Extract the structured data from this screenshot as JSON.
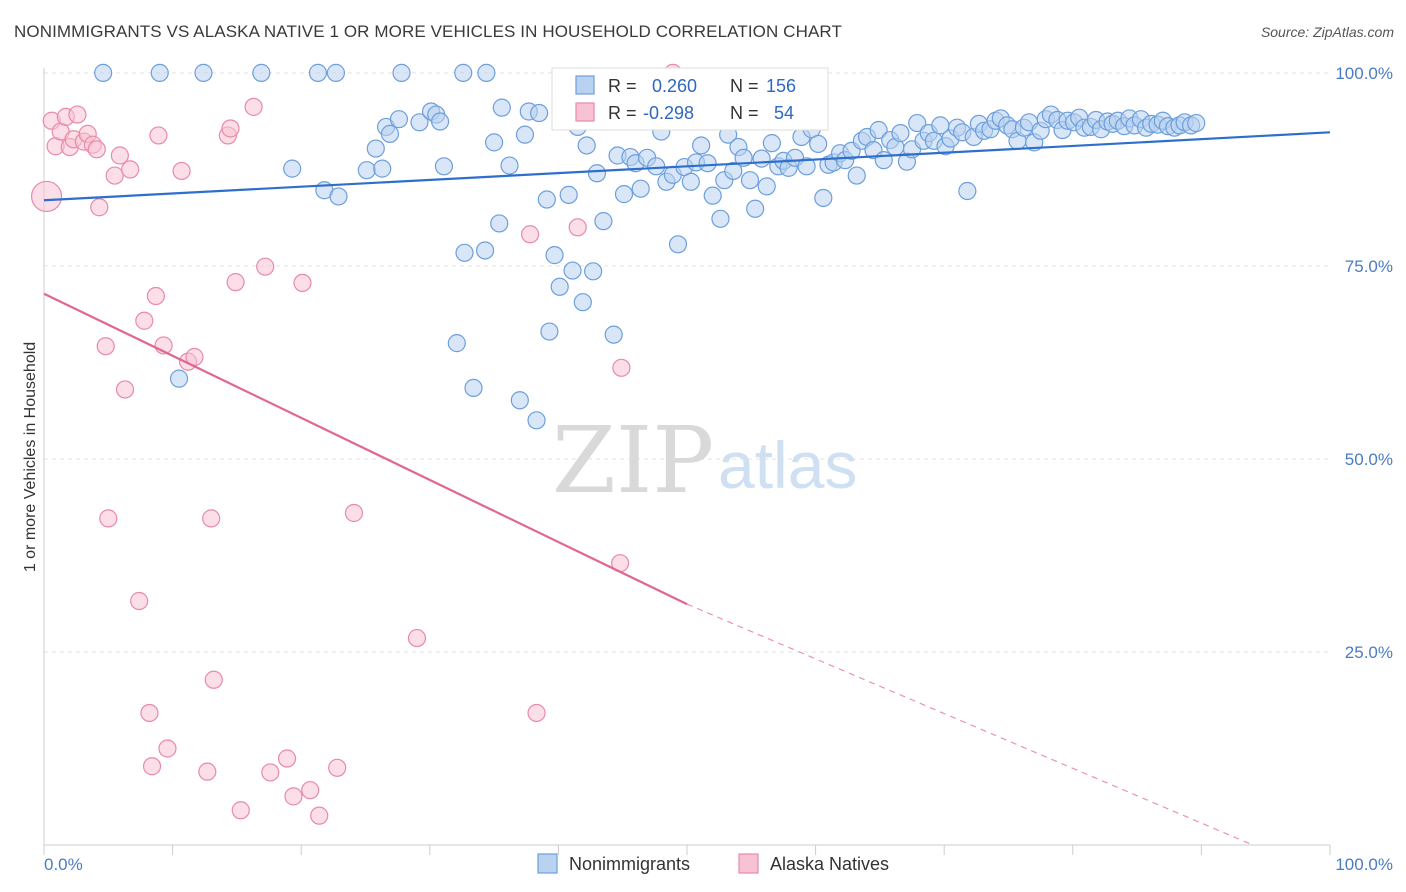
{
  "header": {
    "title": "NONIMMIGRANTS VS ALASKA NATIVE 1 OR MORE VEHICLES IN HOUSEHOLD CORRELATION CHART",
    "source": "Source: ZipAtlas.com"
  },
  "watermark": {
    "zip": "ZIP",
    "atlas": "atlas"
  },
  "colors": {
    "blue_fill": "#b8d2f0",
    "blue_stroke": "#6d9fdc",
    "blue_line": "#2e6fcc",
    "pink_fill": "#f7c3d4",
    "pink_stroke": "#e88aa8",
    "pink_line": "#e06693",
    "grid": "#e3e3e3",
    "tick_text": "#4a7cc4"
  },
  "legend": {
    "rows": [
      {
        "series": "Nonimmigrants",
        "r_label": "R =",
        "r_value": "0.260",
        "n_label": "N =",
        "n_value": "156"
      },
      {
        "series": "Alaska Natives",
        "r_label": "R =",
        "r_value": "-0.298",
        "n_label": "N =",
        "n_value": "54"
      }
    ]
  },
  "chart_data": {
    "type": "scatter",
    "title": "NONIMMIGRANTS VS ALASKA NATIVE 1 OR MORE VEHICLES IN HOUSEHOLD CORRELATION CHART",
    "xlabel": "",
    "ylabel": "1 or more Vehicles in Household",
    "xlim": [
      0,
      100
    ],
    "ylim": [
      0,
      104
    ],
    "x_tick_labels": [
      "0.0%",
      "100.0%"
    ],
    "y_ticks": [
      25,
      50,
      75,
      100
    ],
    "y_tick_labels": [
      "25.0%",
      "50.0%",
      "75.0%",
      "100.0%"
    ],
    "grid": true,
    "legend_position": "top-center",
    "series": [
      {
        "name": "Nonimmigrants",
        "color": "#6d9fdc",
        "trend": {
          "x": [
            0,
            100
          ],
          "y": [
            83.5,
            92.3
          ]
        },
        "points": [
          [
            4.6,
            100
          ],
          [
            9.0,
            100
          ],
          [
            12.4,
            100
          ],
          [
            16.9,
            100
          ],
          [
            21.3,
            100
          ],
          [
            22.7,
            100
          ],
          [
            27.8,
            100
          ],
          [
            32.6,
            100
          ],
          [
            34.4,
            100
          ],
          [
            10.5,
            60.4
          ],
          [
            19.3,
            87.6
          ],
          [
            21.8,
            84.8
          ],
          [
            22.9,
            84
          ],
          [
            25.1,
            87.4
          ],
          [
            25.8,
            90.2
          ],
          [
            26.3,
            87.6
          ],
          [
            26.6,
            93
          ],
          [
            26.9,
            92.1
          ],
          [
            27.6,
            94
          ],
          [
            29.2,
            93.6
          ],
          [
            30.1,
            95
          ],
          [
            30.5,
            94.6
          ],
          [
            30.8,
            93.7
          ],
          [
            31.1,
            87.9
          ],
          [
            32.1,
            65
          ],
          [
            32.7,
            76.7
          ],
          [
            33.4,
            59.2
          ],
          [
            34.3,
            77
          ],
          [
            35.0,
            91
          ],
          [
            35.4,
            80.5
          ],
          [
            35.6,
            95.5
          ],
          [
            36.2,
            88
          ],
          [
            37.0,
            57.6
          ],
          [
            37.4,
            92
          ],
          [
            37.7,
            95
          ],
          [
            38.3,
            55
          ],
          [
            38.5,
            94.8
          ],
          [
            39.1,
            83.6
          ],
          [
            39.3,
            66.5
          ],
          [
            39.7,
            76.4
          ],
          [
            40.1,
            72.3
          ],
          [
            40.8,
            84.2
          ],
          [
            41.1,
            74.4
          ],
          [
            41.5,
            93
          ],
          [
            41.9,
            70.3
          ],
          [
            42.2,
            90.6
          ],
          [
            42.7,
            74.3
          ],
          [
            43.0,
            87
          ],
          [
            43.5,
            80.8
          ],
          [
            43.9,
            96.7
          ],
          [
            44.3,
            66.1
          ],
          [
            44.6,
            89.3
          ],
          [
            45.1,
            84.3
          ],
          [
            45.6,
            89.1
          ],
          [
            46.0,
            88.3
          ],
          [
            46.4,
            85
          ],
          [
            46.9,
            89
          ],
          [
            47.3,
            94.5
          ],
          [
            47.6,
            87.9
          ],
          [
            48.0,
            92.4
          ],
          [
            48.4,
            85.9
          ],
          [
            48.9,
            86.8
          ],
          [
            49.3,
            77.8
          ],
          [
            49.8,
            87.8
          ],
          [
            50.3,
            85.9
          ],
          [
            50.7,
            88.4
          ],
          [
            51.1,
            90.6
          ],
          [
            51.6,
            88.3
          ],
          [
            52.0,
            84.1
          ],
          [
            52.6,
            81.1
          ],
          [
            52.9,
            86.1
          ],
          [
            53.2,
            92
          ],
          [
            53.6,
            87.3
          ],
          [
            54.0,
            90.4
          ],
          [
            54.4,
            89
          ],
          [
            54.9,
            86.1
          ],
          [
            55.3,
            82.4
          ],
          [
            55.8,
            88.9
          ],
          [
            56.2,
            85.3
          ],
          [
            56.6,
            90.9
          ],
          [
            57.1,
            87.9
          ],
          [
            57.5,
            88.6
          ],
          [
            57.9,
            87.7
          ],
          [
            58.4,
            89
          ],
          [
            58.9,
            91.7
          ],
          [
            59.3,
            87.9
          ],
          [
            59.7,
            92.7
          ],
          [
            60.2,
            90.8
          ],
          [
            60.6,
            83.8
          ],
          [
            61.0,
            88.1
          ],
          [
            61.4,
            88.4
          ],
          [
            61.9,
            89.6
          ],
          [
            62.3,
            88.7
          ],
          [
            62.8,
            89.9
          ],
          [
            63.2,
            86.7
          ],
          [
            63.6,
            91.2
          ],
          [
            64.0,
            91.7
          ],
          [
            64.5,
            90
          ],
          [
            64.9,
            92.6
          ],
          [
            65.3,
            88.7
          ],
          [
            65.8,
            91.3
          ],
          [
            66.2,
            90.4
          ],
          [
            66.6,
            92.2
          ],
          [
            67.1,
            88.5
          ],
          [
            67.5,
            90.1
          ],
          [
            67.9,
            93.5
          ],
          [
            68.4,
            91.2
          ],
          [
            68.8,
            92.2
          ],
          [
            69.2,
            91.2
          ],
          [
            69.7,
            93.2
          ],
          [
            70.1,
            90.5
          ],
          [
            70.5,
            91.5
          ],
          [
            71.0,
            92.9
          ],
          [
            71.4,
            92.3
          ],
          [
            71.8,
            84.7
          ],
          [
            72.3,
            91.7
          ],
          [
            72.7,
            93.4
          ],
          [
            73.1,
            92.5
          ],
          [
            73.6,
            92.7
          ],
          [
            74.0,
            93.8
          ],
          [
            74.4,
            94.1
          ],
          [
            74.9,
            93.2
          ],
          [
            75.3,
            92.7
          ],
          [
            75.7,
            91.2
          ],
          [
            76.2,
            92.9
          ],
          [
            76.6,
            93.6
          ],
          [
            77.0,
            91
          ],
          [
            77.5,
            92.5
          ],
          [
            77.9,
            94
          ],
          [
            78.3,
            94.6
          ],
          [
            78.8,
            93.9
          ],
          [
            79.2,
            92.6
          ],
          [
            79.6,
            93.8
          ],
          [
            80.1,
            93.6
          ],
          [
            80.5,
            94.2
          ],
          [
            80.9,
            92.9
          ],
          [
            81.4,
            93
          ],
          [
            81.8,
            93.9
          ],
          [
            82.2,
            92.7
          ],
          [
            82.7,
            93.7
          ],
          [
            83.1,
            93.4
          ],
          [
            83.5,
            93.8
          ],
          [
            84.0,
            93.1
          ],
          [
            84.4,
            94.1
          ],
          [
            84.8,
            93.2
          ],
          [
            85.3,
            94
          ],
          [
            85.7,
            92.9
          ],
          [
            86.1,
            93.4
          ],
          [
            86.6,
            93.3
          ],
          [
            87.0,
            93.8
          ],
          [
            87.4,
            93.1
          ],
          [
            87.9,
            92.9
          ],
          [
            88.3,
            93.2
          ],
          [
            88.7,
            93.6
          ],
          [
            89.2,
            93.2
          ],
          [
            89.6,
            93.5
          ]
        ]
      },
      {
        "name": "Alaska Natives",
        "color": "#e88aa8",
        "trend": {
          "x": [
            0,
            50
          ],
          "y": [
            71.4,
            31.2
          ]
        },
        "trend_extended": {
          "x": [
            50,
            94
          ],
          "y": [
            31.2,
            0
          ]
        },
        "points": [
          [
            0.2,
            84
          ],
          [
            0.6,
            93.8
          ],
          [
            0.9,
            90.5
          ],
          [
            1.3,
            92.4
          ],
          [
            1.7,
            94.3
          ],
          [
            2.0,
            90.4
          ],
          [
            2.3,
            91.4
          ],
          [
            2.6,
            94.6
          ],
          [
            3.1,
            91.1
          ],
          [
            3.4,
            92.1
          ],
          [
            3.8,
            90.7
          ],
          [
            4.1,
            90.1
          ],
          [
            4.3,
            82.6
          ],
          [
            4.8,
            64.6
          ],
          [
            5.0,
            42.3
          ],
          [
            5.5,
            86.7
          ],
          [
            5.9,
            89.3
          ],
          [
            6.3,
            59
          ],
          [
            6.7,
            87.5
          ],
          [
            7.4,
            31.6
          ],
          [
            7.8,
            67.9
          ],
          [
            8.2,
            17.1
          ],
          [
            8.4,
            10.2
          ],
          [
            8.7,
            71.1
          ],
          [
            8.9,
            91.9
          ],
          [
            9.3,
            64.7
          ],
          [
            9.6,
            12.5
          ],
          [
            10.7,
            87.3
          ],
          [
            11.2,
            62.6
          ],
          [
            11.7,
            63.2
          ],
          [
            12.7,
            9.5
          ],
          [
            13.0,
            42.3
          ],
          [
            13.2,
            21.4
          ],
          [
            14.3,
            91.9
          ],
          [
            14.5,
            92.8
          ],
          [
            14.9,
            72.9
          ],
          [
            15.3,
            4.5
          ],
          [
            16.3,
            95.6
          ],
          [
            17.2,
            74.9
          ],
          [
            17.6,
            9.4
          ],
          [
            18.9,
            11.2
          ],
          [
            19.4,
            6.3
          ],
          [
            20.1,
            72.8
          ],
          [
            20.7,
            7.1
          ],
          [
            21.4,
            3.8
          ],
          [
            22.8,
            10
          ],
          [
            24.1,
            43
          ],
          [
            29.0,
            26.8
          ],
          [
            38.3,
            17.1
          ],
          [
            37.8,
            79.1
          ],
          [
            41.5,
            80
          ],
          [
            44.8,
            36.5
          ],
          [
            44.9,
            61.8
          ],
          [
            48.9,
            100
          ]
        ]
      }
    ]
  }
}
